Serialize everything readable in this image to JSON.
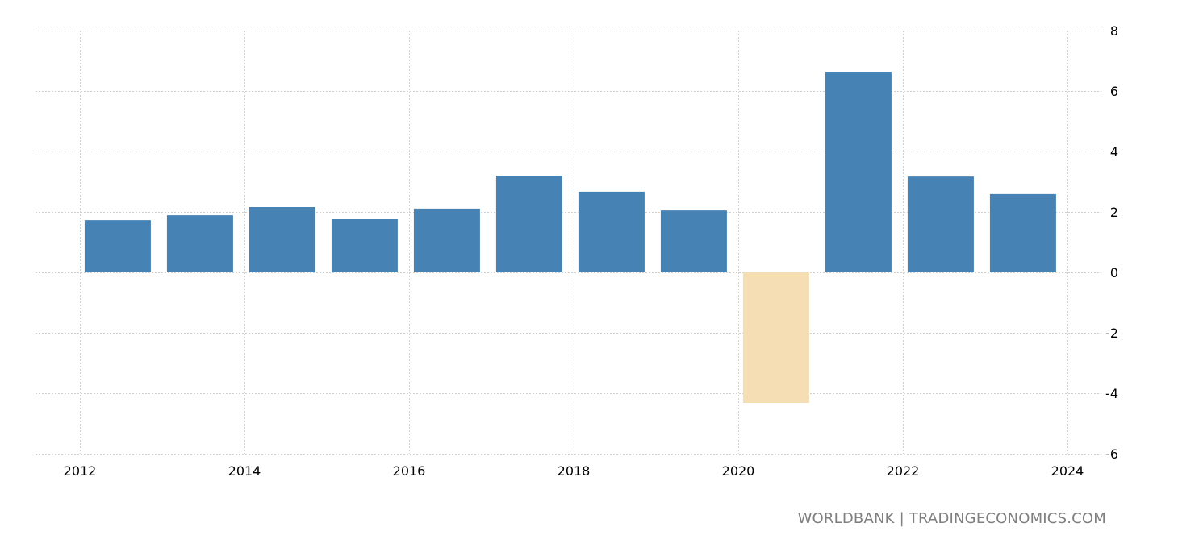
{
  "chart_data": {
    "type": "bar",
    "categories": [
      "2012",
      "2013",
      "2014",
      "2015",
      "2016",
      "2017",
      "2018",
      "2019",
      "2020",
      "2021",
      "2022",
      "2023"
    ],
    "values": [
      1.73,
      1.89,
      2.16,
      1.76,
      2.11,
      3.2,
      2.67,
      2.05,
      -4.32,
      6.64,
      3.17,
      2.59
    ],
    "xlim": [
      2012,
      2024
    ],
    "x_ticks": [
      "2012",
      "2014",
      "2016",
      "2018",
      "2020",
      "2022",
      "2024"
    ],
    "ylim": [
      -6,
      8
    ],
    "y_ticks": [
      "8",
      "6",
      "4",
      "2",
      "0",
      "-2",
      "-4",
      "-6"
    ],
    "y_axis_position": "right",
    "grid": true,
    "colors": {
      "positive": "#4682b4",
      "negative": "#f5deb3",
      "grid": "#d0d0d0"
    },
    "title": "",
    "xlabel": "",
    "ylabel": ""
  },
  "source": "WORLDBANK | TRADINGECONOMICS.COM"
}
